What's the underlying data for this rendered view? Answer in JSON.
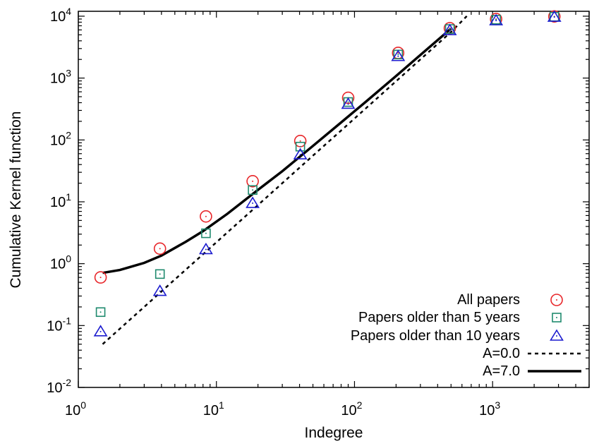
{
  "chart_data": {
    "type": "scatter",
    "xlabel": "Indegree",
    "ylabel": "Cumulative Kernel function",
    "xscale": "log",
    "yscale": "log",
    "xlim": [
      1,
      5000
    ],
    "ylim": [
      0.01,
      12000
    ],
    "x_ticks": [
      {
        "base": "10",
        "exp": "0"
      },
      {
        "base": "10",
        "exp": "1"
      },
      {
        "base": "10",
        "exp": "2"
      },
      {
        "base": "10",
        "exp": "3"
      }
    ],
    "y_ticks": [
      {
        "base": "10",
        "exp": "-2"
      },
      {
        "base": "10",
        "exp": "-1"
      },
      {
        "base": "10",
        "exp": "0"
      },
      {
        "base": "10",
        "exp": "1"
      },
      {
        "base": "10",
        "exp": "2"
      },
      {
        "base": "10",
        "exp": "3"
      },
      {
        "base": "10",
        "exp": "4"
      }
    ],
    "legend_position": "bottom-right",
    "series": [
      {
        "name": "All papers",
        "marker": "circle",
        "color": "#e8262a",
        "x": [
          1.45,
          3.9,
          8.4,
          18.3,
          40.5,
          90,
          207,
          490,
          1060,
          2800
        ],
        "y": [
          0.6,
          1.75,
          5.8,
          21.5,
          96,
          480,
          2550,
          6400,
          9000,
          9900
        ]
      },
      {
        "name": "Papers older than 5 years",
        "marker": "square",
        "color": "#1f8a6e",
        "x": [
          1.45,
          3.9,
          8.4,
          18.3,
          40.5,
          90,
          207,
          490,
          1060,
          2800
        ],
        "y": [
          0.165,
          0.68,
          3.1,
          15.5,
          78,
          410,
          2400,
          6200,
          8800,
          9800
        ]
      },
      {
        "name": "Papers older than 10 years",
        "marker": "triangle",
        "color": "#1c1ccf",
        "x": [
          1.45,
          3.9,
          8.4,
          18.3,
          40.5,
          90,
          207,
          490,
          1060,
          2800
        ],
        "y": [
          0.08,
          0.36,
          1.7,
          9.5,
          58,
          380,
          2250,
          5900,
          8500,
          9700
        ]
      },
      {
        "name": "A=0.0",
        "style": "dotted",
        "color": "#000000",
        "x": [
          1.5,
          2,
          3,
          5,
          8,
          12,
          20,
          30,
          50,
          80,
          120,
          200,
          300,
          500,
          650
        ],
        "y": [
          0.05,
          0.089,
          0.2,
          0.556,
          1.42,
          3.2,
          8.89,
          20,
          55.6,
          142,
          320,
          889,
          2000,
          5560,
          10000
        ]
      },
      {
        "name": "A=7.0",
        "style": "solid",
        "color": "#000000",
        "x": [
          1.5,
          2,
          3,
          4,
          6,
          8,
          12,
          20,
          30,
          50,
          80,
          120,
          200,
          300,
          500
        ],
        "y": [
          0.71,
          0.79,
          1.03,
          1.35,
          2.26,
          3.36,
          6.4,
          15.6,
          31.2,
          80,
          192,
          410,
          1080,
          2360,
          6300
        ]
      }
    ]
  }
}
